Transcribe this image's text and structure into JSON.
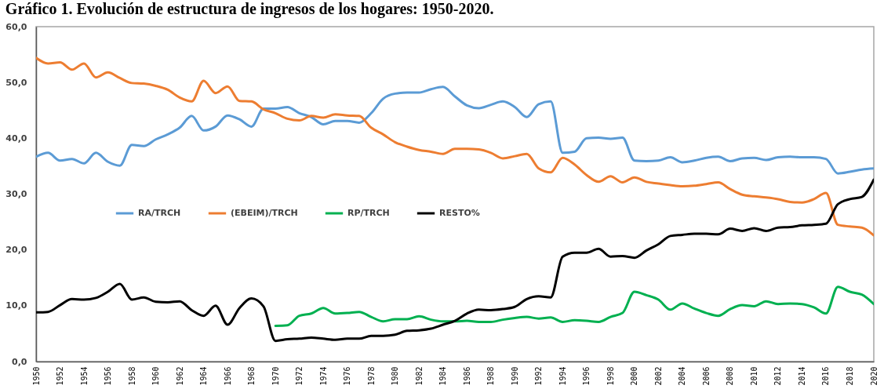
{
  "chart_data": {
    "type": "line",
    "title": "Gráfico 1. Evolución de estructura de ingresos de los hogares: 1950-2020.",
    "x": [
      1950,
      1951,
      1952,
      1953,
      1954,
      1955,
      1956,
      1957,
      1958,
      1959,
      1960,
      1961,
      1962,
      1963,
      1964,
      1965,
      1966,
      1967,
      1968,
      1969,
      1970,
      1971,
      1972,
      1973,
      1974,
      1975,
      1976,
      1977,
      1978,
      1979,
      1980,
      1981,
      1982,
      1983,
      1984,
      1985,
      1986,
      1987,
      1988,
      1989,
      1990,
      1991,
      1992,
      1993,
      1994,
      1995,
      1996,
      1997,
      1998,
      1999,
      2000,
      2001,
      2002,
      2003,
      2004,
      2005,
      2006,
      2007,
      2008,
      2009,
      2010,
      2011,
      2012,
      2013,
      2014,
      2015,
      2016,
      2017,
      2018,
      2019,
      2020
    ],
    "xlim": [
      1950,
      2020
    ],
    "xticks": [
      1950,
      1952,
      1954,
      1956,
      1958,
      1960,
      1962,
      1964,
      1966,
      1968,
      1970,
      1972,
      1974,
      1976,
      1978,
      1980,
      1982,
      1984,
      1986,
      1988,
      1990,
      1992,
      1994,
      1996,
      1998,
      2000,
      2002,
      2004,
      2006,
      2008,
      2010,
      2012,
      2014,
      2016,
      2018,
      2020
    ],
    "ylim": [
      0,
      60
    ],
    "yticks": [
      {
        "value": 0,
        "label": "0,0"
      },
      {
        "value": 10,
        "label": "10,0"
      },
      {
        "value": 20,
        "label": "20,0"
      },
      {
        "value": 30,
        "label": "30,0"
      },
      {
        "value": 40,
        "label": "40,0"
      },
      {
        "value": 50,
        "label": "50,0"
      },
      {
        "value": 60,
        "label": "60,0"
      }
    ],
    "legend": "left",
    "grid": false,
    "line_style": "solid",
    "series": [
      {
        "name": "RA/TRCH",
        "color": "#5b9bd5",
        "values": [
          36.7,
          37.4,
          36.0,
          36.3,
          35.5,
          37.4,
          35.8,
          35.1,
          38.8,
          38.6,
          39.8,
          40.7,
          41.9,
          44.0,
          41.4,
          42.1,
          44.1,
          43.4,
          42.1,
          45.3,
          45.3,
          45.6,
          44.5,
          43.8,
          42.5,
          43.1,
          43.1,
          42.8,
          44.5,
          47.1,
          48.0,
          48.2,
          48.2,
          48.8,
          49.2,
          47.5,
          45.9,
          45.4,
          46.0,
          46.6,
          45.6,
          43.8,
          46.1,
          46.6,
          37.4,
          37.6,
          40.0,
          40.1,
          39.9,
          40.1,
          36.0,
          35.9,
          36.0,
          36.6,
          35.7,
          36.0,
          36.5,
          36.7,
          35.9,
          36.4,
          36.5,
          36.1,
          36.6,
          36.7,
          36.6,
          36.6,
          36.3,
          33.7,
          34.0,
          34.4,
          34.6
        ]
      },
      {
        "name": "(EBEIM)/TRCH",
        "color": "#ed7d31",
        "values": [
          54.4,
          53.4,
          53.6,
          52.3,
          53.4,
          50.9,
          51.8,
          50.8,
          49.9,
          49.8,
          49.4,
          48.7,
          47.3,
          46.6,
          50.3,
          48.1,
          49.3,
          46.7,
          46.6,
          45.2,
          44.5,
          43.5,
          43.2,
          44.0,
          43.7,
          44.3,
          44.1,
          44.0,
          41.9,
          40.7,
          39.3,
          38.5,
          37.9,
          37.6,
          37.2,
          38.1,
          38.1,
          38.0,
          37.4,
          36.4,
          36.8,
          37.2,
          34.6,
          33.9,
          36.5,
          35.3,
          33.4,
          32.2,
          33.2,
          32.1,
          33.0,
          32.2,
          31.9,
          31.6,
          31.4,
          31.5,
          31.8,
          32.1,
          30.9,
          29.9,
          29.6,
          29.4,
          29.1,
          28.6,
          28.5,
          29.1,
          30.2,
          24.5,
          24.2,
          24.0,
          22.6
        ]
      },
      {
        "name": "RP/TRCH",
        "color": "#00b050",
        "values": [
          null,
          null,
          null,
          null,
          null,
          null,
          null,
          null,
          null,
          null,
          null,
          null,
          null,
          null,
          null,
          null,
          null,
          null,
          null,
          null,
          6.4,
          6.5,
          8.2,
          8.6,
          9.6,
          8.6,
          8.7,
          8.9,
          8.0,
          7.2,
          7.6,
          7.6,
          8.1,
          7.5,
          7.2,
          7.2,
          7.3,
          7.1,
          7.1,
          7.5,
          7.8,
          8.0,
          7.7,
          7.9,
          7.1,
          7.4,
          7.3,
          7.1,
          8.0,
          8.7,
          12.5,
          11.9,
          11.1,
          9.3,
          10.4,
          9.5,
          8.7,
          8.2,
          9.4,
          10.1,
          9.9,
          10.8,
          10.3,
          10.4,
          10.3,
          9.7,
          8.6,
          13.4,
          12.5,
          12.0,
          10.3
        ]
      },
      {
        "name": "RESTO%",
        "color": "#000000",
        "values": [
          8.8,
          8.9,
          10.1,
          11.2,
          11.1,
          11.4,
          12.5,
          13.9,
          11.1,
          11.5,
          10.7,
          10.6,
          10.8,
          9.2,
          8.2,
          10.0,
          6.6,
          9.6,
          11.3,
          9.9,
          3.7,
          4.0,
          4.1,
          4.3,
          4.1,
          3.9,
          4.1,
          4.1,
          4.6,
          4.6,
          4.8,
          5.5,
          5.6,
          5.9,
          6.6,
          7.3,
          8.6,
          9.3,
          9.2,
          9.4,
          9.8,
          11.2,
          11.7,
          11.5,
          18.8,
          19.5,
          19.5,
          20.2,
          18.8,
          18.9,
          18.6,
          19.9,
          21.0,
          22.5,
          22.7,
          22.9,
          22.9,
          22.8,
          23.8,
          23.4,
          23.9,
          23.4,
          24.0,
          24.1,
          24.4,
          24.5,
          24.7,
          28.2,
          29.1,
          29.5,
          32.6
        ]
      }
    ]
  }
}
